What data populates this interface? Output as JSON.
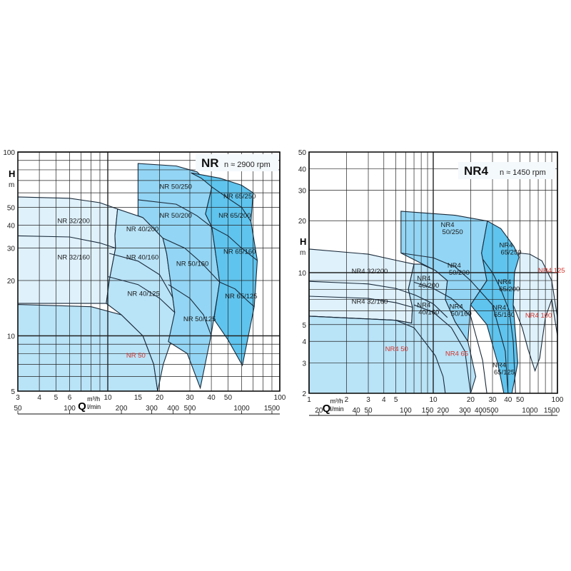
{
  "colors": {
    "lightest": "#dff1fb",
    "light": "#b9e3f7",
    "medium": "#93d5f4",
    "dark": "#5fc4ee",
    "line": "#1a2a3a",
    "grid": "#222222",
    "red_label": "#d2352c"
  },
  "chart_data": [
    {
      "type": "area",
      "title": "NR",
      "subtitle": "n ≈ 2900 rpm",
      "ylabel": "H",
      "yunit": "m",
      "xlabel": "Q",
      "xunit": "m³/h",
      "x2unit": "l/min",
      "xscale": "log",
      "yscale": "log",
      "xlim": [
        3,
        100
      ],
      "ylim": [
        5,
        100
      ],
      "grid": true,
      "x_ticks": [
        3,
        4,
        5,
        6,
        10,
        15,
        20,
        30,
        40,
        50,
        100
      ],
      "y_ticks": [
        5,
        10,
        20,
        30,
        40,
        50,
        100
      ],
      "x2_ticks": [
        50,
        100,
        200,
        300,
        400,
        500,
        1000,
        1500
      ],
      "regions": [
        {
          "shade": "lightest",
          "points": [
            [
              3,
              57
            ],
            [
              6,
              56
            ],
            [
              9,
              53
            ],
            [
              11.4,
              49
            ],
            [
              11,
              35
            ],
            [
              11.1,
              30
            ],
            [
              10.2,
              20
            ],
            [
              9.8,
              15
            ],
            [
              3,
              15
            ]
          ]
        },
        {
          "shade": "light",
          "points": [
            [
              3,
              14.8
            ],
            [
              8,
              14.4
            ],
            [
              12,
              13
            ],
            [
              16,
              10
            ],
            [
              18.5,
              7
            ],
            [
              19.5,
              5
            ],
            [
              3,
              5
            ]
          ]
        },
        {
          "shade": "light",
          "points": [
            [
              11.4,
              49
            ],
            [
              16,
              44
            ],
            [
              20.9,
              34
            ],
            [
              22,
              28
            ],
            [
              24.5,
              13.4
            ],
            [
              23.5,
              9.5
            ],
            [
              21,
              7
            ],
            [
              19.5,
              5
            ],
            [
              18.5,
              7
            ],
            [
              16,
              10
            ],
            [
              12,
              13
            ],
            [
              9.8,
              15
            ],
            [
              10.2,
              20
            ],
            [
              11.1,
              30
            ],
            [
              11,
              35
            ]
          ]
        },
        {
          "shade": "medium",
          "points": [
            [
              15,
              86.6
            ],
            [
              25,
              84
            ],
            [
              33,
              78
            ],
            [
              40.3,
              64.6
            ],
            [
              37,
              46
            ],
            [
              40.3,
              39
            ],
            [
              44.7,
              19.6
            ],
            [
              39.8,
              10
            ],
            [
              34.5,
              5.2
            ],
            [
              29,
              8
            ],
            [
              22.5,
              9.3
            ],
            [
              24.5,
              13.4
            ],
            [
              22,
              28
            ],
            [
              20.9,
              34
            ],
            [
              16,
              44
            ],
            [
              15,
              45
            ]
          ]
        },
        {
          "shade": "dark",
          "points": [
            [
              30.5,
              77
            ],
            [
              45,
              72
            ],
            [
              60,
              66
            ],
            [
              70,
              60
            ],
            [
              68,
              41.9
            ],
            [
              74,
              25.7
            ],
            [
              71,
              14.4
            ],
            [
              60.6,
              6.9
            ],
            [
              50,
              9.5
            ],
            [
              41.4,
              12.3
            ],
            [
              44.7,
              19.6
            ],
            [
              40.3,
              39
            ],
            [
              37,
              46
            ],
            [
              40.3,
              64.6
            ],
            [
              35,
              72
            ]
          ]
        }
      ],
      "curves": [
        [
          [
            3,
            35
          ],
          [
            6,
            34.5
          ],
          [
            9,
            32
          ],
          [
            11.1,
            30
          ]
        ],
        [
          [
            10.2,
            28.1
          ],
          [
            15,
            25.5
          ],
          [
            20,
            21.5
          ],
          [
            24,
            16
          ]
        ],
        [
          [
            10,
            21
          ],
          [
            15,
            19
          ],
          [
            20,
            16
          ],
          [
            24.5,
            13.4
          ]
        ],
        [
          [
            15,
            55
          ],
          [
            25,
            52
          ],
          [
            33,
            45
          ],
          [
            40.3,
            39
          ]
        ],
        [
          [
            20.9,
            34
          ],
          [
            28,
            30
          ],
          [
            35,
            25
          ],
          [
            44.7,
            19.6
          ]
        ],
        [
          [
            22.5,
            19
          ],
          [
            30,
            16
          ],
          [
            36,
            13
          ],
          [
            40,
            10
          ]
        ],
        [
          [
            40.3,
            64.6
          ],
          [
            50,
            56
          ],
          [
            60,
            50
          ],
          [
            68,
            41.9
          ]
        ],
        [
          [
            40.3,
            39
          ],
          [
            50,
            35
          ],
          [
            60,
            30
          ],
          [
            74,
            25.7
          ]
        ],
        [
          [
            44.7,
            19.6
          ],
          [
            55,
            18
          ],
          [
            65,
            15.5
          ],
          [
            71,
            14.4
          ]
        ]
      ],
      "labels": [
        {
          "text": "NR 32/200",
          "at": [
            5.1,
            41
          ],
          "color": "black"
        },
        {
          "text": "NR 32/160",
          "at": [
            5.1,
            26
          ],
          "color": "black"
        },
        {
          "text": "NR 40/200",
          "at": [
            12.8,
            37
          ],
          "color": "black"
        },
        {
          "text": "NR 40/160",
          "at": [
            12.8,
            26
          ],
          "color": "black"
        },
        {
          "text": "NR 40/125",
          "at": [
            13,
            16.5
          ],
          "color": "black"
        },
        {
          "text": "NR 50",
          "at": [
            12.8,
            7.6
          ],
          "color": "red"
        },
        {
          "text": "NR 50/250",
          "at": [
            20,
            63
          ],
          "color": "black"
        },
        {
          "text": "NR 50/200",
          "at": [
            20,
            44
          ],
          "color": "black"
        },
        {
          "text": "NR 50/160",
          "at": [
            25,
            24
          ],
          "color": "black"
        },
        {
          "text": "NR 50/125",
          "at": [
            27.5,
            12
          ],
          "color": "black"
        },
        {
          "text": "NR 65/250",
          "at": [
            47,
            56
          ],
          "color": "black"
        },
        {
          "text": "NR 65/200",
          "at": [
            44,
            44
          ],
          "color": "black"
        },
        {
          "text": "NR 65/160",
          "at": [
            47,
            28
          ],
          "color": "black"
        },
        {
          "text": "NR 65/125",
          "at": [
            48,
            16
          ],
          "color": "black"
        }
      ]
    },
    {
      "type": "area",
      "title": "NR4",
      "subtitle": "n ≈ 1450 rpm",
      "ylabel": "H",
      "yunit": "m",
      "xlabel": "Q",
      "xunit": "m³/h",
      "x2unit": "l/min",
      "xscale": "log",
      "yscale": "log",
      "xlim": [
        1,
        100
      ],
      "ylim": [
        2,
        50
      ],
      "grid": true,
      "x_ticks": [
        1,
        2,
        3,
        4,
        5,
        10,
        20,
        30,
        40,
        50,
        100
      ],
      "y_ticks": [
        2,
        3,
        4,
        5,
        10,
        20,
        30,
        40,
        50
      ],
      "x2_ticks": [
        20,
        40,
        50,
        100,
        150,
        200,
        300,
        400,
        500,
        1000,
        1500
      ],
      "regions": [
        {
          "shade": "lightest",
          "points": [
            [
              1,
              13.7
            ],
            [
              3,
              12.8
            ],
            [
              5,
              11.8
            ],
            [
              7,
              11.2
            ],
            [
              6.3,
              8
            ],
            [
              6.8,
              6.3
            ],
            [
              6.7,
              5.1
            ],
            [
              5,
              5.3
            ],
            [
              1,
              5.6
            ]
          ]
        },
        {
          "shade": "lightest",
          "points": [
            [
              49,
              13
            ],
            [
              60,
              12.8
            ],
            [
              75,
              11.7
            ],
            [
              90,
              9
            ],
            [
              100,
              5.5
            ],
            [
              100,
              4.3
            ],
            [
              90,
              7
            ],
            [
              80,
              5.5
            ],
            [
              72,
              3.2
            ],
            [
              66,
              2.7
            ],
            [
              58,
              3.6
            ],
            [
              52,
              4.8
            ],
            [
              44,
              6.5
            ],
            [
              45,
              10
            ]
          ]
        },
        {
          "shade": "light",
          "points": [
            [
              1,
              5.6
            ],
            [
              5,
              5.3
            ],
            [
              6.7,
              5.1
            ],
            [
              6.8,
              6.3
            ],
            [
              6.3,
              8
            ],
            [
              7,
              11.2
            ],
            [
              8,
              11.2
            ],
            [
              10.4,
              10.3
            ],
            [
              13,
              9
            ],
            [
              12.5,
              7
            ],
            [
              15,
              5.2
            ],
            [
              19,
              4
            ],
            [
              22,
              2.5
            ],
            [
              20,
              2
            ],
            [
              1,
              2
            ]
          ]
        },
        {
          "shade": "medium",
          "points": [
            [
              5.5,
              22.7
            ],
            [
              15,
              21.5
            ],
            [
              27.3,
              19.9
            ],
            [
              24.5,
              13
            ],
            [
              27,
              9
            ],
            [
              20,
              6.5
            ],
            [
              19,
              4
            ],
            [
              15,
              5.2
            ],
            [
              12.5,
              7
            ],
            [
              13,
              9
            ],
            [
              10.4,
              10.3
            ],
            [
              5.5,
              13
            ]
          ]
        },
        {
          "shade": "dark",
          "points": [
            [
              27.3,
              19.9
            ],
            [
              35,
              18
            ],
            [
              44.6,
              14.2
            ],
            [
              49,
              12.3
            ],
            [
              45,
              10
            ],
            [
              44,
              6.5
            ],
            [
              48,
              3
            ],
            [
              43,
              2
            ],
            [
              37,
              2
            ],
            [
              33,
              3
            ],
            [
              27,
              5
            ],
            [
              20,
              6.5
            ],
            [
              27,
              9
            ],
            [
              24.5,
              13
            ]
          ]
        }
      ],
      "curves": [
        [
          [
            1,
            8.9
          ],
          [
            3,
            8.6
          ],
          [
            5,
            8.1
          ],
          [
            7.2,
            7.4
          ],
          [
            10,
            6.6
          ],
          [
            13,
            5.5
          ]
        ],
        [
          [
            1,
            7.3
          ],
          [
            3,
            7.1
          ],
          [
            5,
            6.7
          ],
          [
            6.8,
            6.3
          ]
        ],
        [
          [
            7,
            8.8
          ],
          [
            10,
            8.1
          ],
          [
            14,
            7.1
          ],
          [
            20,
            5.6
          ],
          [
            25,
            3.1
          ],
          [
            27,
            2
          ]
        ],
        [
          [
            7,
            6.5
          ],
          [
            10,
            5.9
          ],
          [
            14,
            4.8
          ],
          [
            18,
            3.5
          ],
          [
            20,
            2
          ]
        ],
        [
          [
            1,
            5.6
          ],
          [
            5,
            5.3
          ],
          [
            7,
            4.8
          ],
          [
            10.4,
            3.3
          ],
          [
            12,
            2.5
          ],
          [
            12.5,
            2
          ]
        ],
        [
          [
            5.5,
            13
          ],
          [
            10,
            12.2
          ],
          [
            15,
            10.8
          ],
          [
            20,
            9
          ],
          [
            30,
            6.5
          ],
          [
            38,
            3.5
          ],
          [
            40,
            2
          ]
        ],
        [
          [
            25,
            12
          ],
          [
            30,
            10
          ],
          [
            35,
            8
          ],
          [
            41,
            6
          ],
          [
            44,
            4
          ],
          [
            46,
            2
          ]
        ]
      ],
      "labels": [
        {
          "text": "NR4 32/200",
          "at": [
            2.2,
            9.9
          ],
          "color": "black"
        },
        {
          "text": "NR4 32/160",
          "at": [
            2.2,
            6.6
          ],
          "color": "black"
        },
        {
          "text": "NR4 40/200",
          "at": [
            7.4,
            8.6
          ],
          "color": "black"
        },
        {
          "text": "NR4 40/160",
          "at": [
            7.4,
            6.0
          ],
          "color": "black"
        },
        {
          "text": "NR4 50",
          "at": [
            4.1,
            3.5
          ],
          "color": "red"
        },
        {
          "text": "NR4 65",
          "at": [
            12.5,
            3.3
          ],
          "color": "red"
        },
        {
          "text": "NR4 50/250",
          "at": [
            11.5,
            17.5
          ],
          "color": "black"
        },
        {
          "text": "NR4 50/200",
          "at": [
            13,
            10.2
          ],
          "color": "black"
        },
        {
          "text": "NR4 50/160",
          "at": [
            13.5,
            5.9
          ],
          "color": "black"
        },
        {
          "text": "NR4 65/250",
          "at": [
            34,
            13.4
          ],
          "color": "black"
        },
        {
          "text": "NR4 65/200",
          "at": [
            33,
            8.2
          ],
          "color": "black"
        },
        {
          "text": "NR4 65/160",
          "at": [
            30,
            5.8
          ],
          "color": "black"
        },
        {
          "text": "NR4 65/125",
          "at": [
            30,
            2.7
          ],
          "color": "black"
        },
        {
          "text": "NR4 125",
          "at": [
            70,
            10
          ],
          "color": "red"
        },
        {
          "text": "NR4 100",
          "at": [
            55,
            5.5
          ],
          "color": "red"
        }
      ]
    }
  ]
}
